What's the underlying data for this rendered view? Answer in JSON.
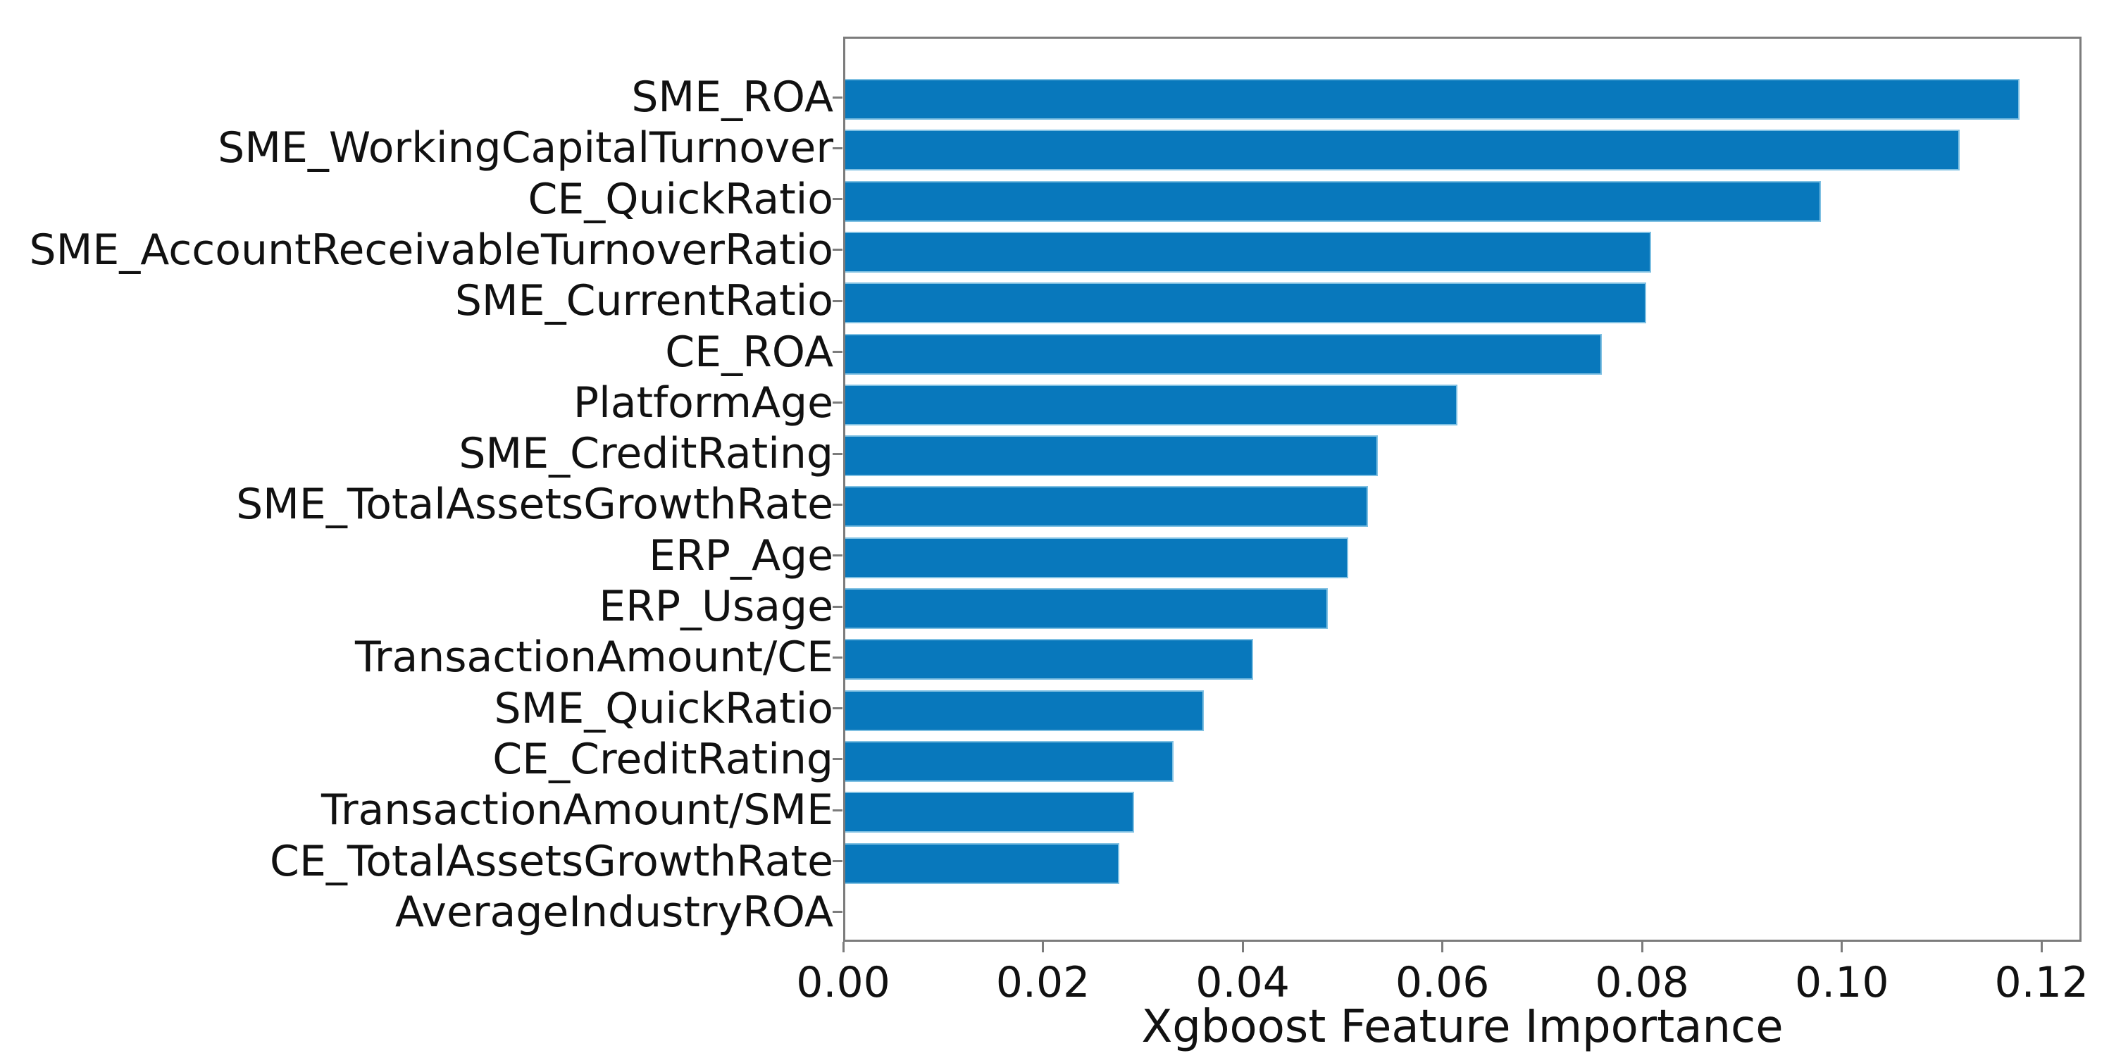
{
  "chart_data": {
    "type": "bar",
    "orientation": "horizontal",
    "title": "",
    "xlabel": "Xgboost Feature Importance",
    "ylabel": "",
    "categories": [
      "SME_ROA",
      "SME_WorkingCapitalTurnover",
      "CE_QuickRatio",
      "SME_AccountReceivableTurnoverRatio",
      "SME_CurrentRatio",
      "CE_ROA",
      "PlatformAge",
      "SME_CreditRating",
      "SME_TotalAssetsGrowthRate",
      "ERP_Age",
      "ERP_Usage",
      "TransactionAmount/CE",
      "SME_QuickRatio",
      "CE_CreditRating",
      "TransactionAmount/SME",
      "CE_TotalAssetsGrowthRate",
      "AverageIndustryROA"
    ],
    "values": [
      0.118,
      0.112,
      0.098,
      0.081,
      0.0805,
      0.076,
      0.0615,
      0.0535,
      0.0525,
      0.0505,
      0.0485,
      0.041,
      0.036,
      0.033,
      0.029,
      0.0275,
      0.0
    ],
    "x_tick_labels": [
      "0.00",
      "0.02",
      "0.04",
      "0.06",
      "0.08",
      "0.10",
      "0.12"
    ],
    "x_tick_values": [
      0.0,
      0.02,
      0.04,
      0.06,
      0.08,
      0.1,
      0.12
    ],
    "xlim": [
      0,
      0.124
    ],
    "grid": false,
    "legend": null,
    "bar_color": "#0878bc",
    "bar_edge_color": "#7fc0e2",
    "spine_color": "#7c7c7c",
    "text_color": "#111111"
  }
}
